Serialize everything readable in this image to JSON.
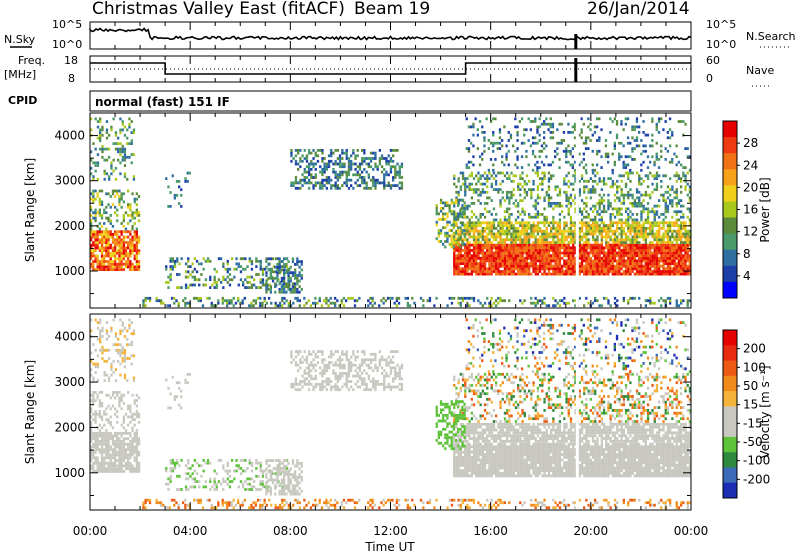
{
  "header": {
    "title": "Christmas Valley East (fitACF)",
    "beam": "Beam 19",
    "date": "26/Jan/2014"
  },
  "top_panels": {
    "nsky_label": "N.Sky",
    "nsky_ticks": [
      "10^5",
      "10^0"
    ],
    "nsearch_label": "N.Search",
    "nsearch_ticks": [
      "10^5",
      "10^0"
    ],
    "freq_label_1": "Freq.",
    "freq_label_2": "[MHz]",
    "freq_ticks": [
      "18",
      "8"
    ],
    "nave_label": "Nave",
    "nave_ticks": [
      "60",
      "0"
    ],
    "cpid_label": "CPID",
    "cpid_value": "normal (fast) 151 IF"
  },
  "chart_data": [
    {
      "type": "heatmap",
      "name_in_image": "power",
      "ylabel": "Slant Range [km]",
      "ylim": [
        180,
        4500
      ],
      "yticks": [
        "4000",
        "3000",
        "2000",
        "1000"
      ],
      "colorbar_label": "Power [dB]",
      "colorbar_ticks": [
        "28",
        "24",
        "20",
        "16",
        "12",
        "8",
        "4"
      ],
      "colorbar_colors": [
        "#0000ff",
        "#1c3fa8",
        "#2e6fa0",
        "#4a9a6a",
        "#5c8a3c",
        "#a8c81c",
        "#f0d01a",
        "#f5a21a",
        "#f27216",
        "#ef3b12",
        "#e60000"
      ]
    },
    {
      "type": "heatmap",
      "name_in_image": "velocity",
      "ylabel": "Slant Range [km]",
      "ylim": [
        180,
        4500
      ],
      "yticks": [
        "4000",
        "3000",
        "2000",
        "1000"
      ],
      "colorbar_label": "Velocity [m s⁻¹]",
      "colorbar_ticks": [
        "200",
        "100",
        "50",
        "15",
        "-15",
        "-50",
        "-100",
        "-200"
      ],
      "colorbar_colors": [
        "#1e2eb4",
        "#3a6ab8",
        "#2e8a3e",
        "#5ec23a",
        "#c8c8c0",
        "#c8c8c0",
        "#f4b23a",
        "#f08a1a",
        "#ec5a14",
        "#e82a10",
        "#e60000"
      ]
    }
  ],
  "xaxis": {
    "label": "Time UT",
    "ticks": [
      "00:00",
      "04:00",
      "08:00",
      "12:00",
      "16:00",
      "20:00",
      "00:00"
    ]
  }
}
